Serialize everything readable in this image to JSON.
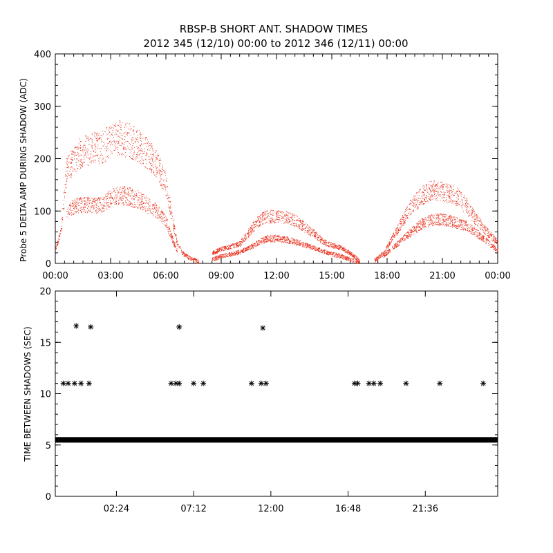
{
  "title_line1": "RBSP-B SHORT ANT. SHADOW TIMES",
  "title_line2": "2012 345 (12/10) 00:00 to 2012 346 (12/11) 00:00",
  "colors": {
    "top_points": "#e8301c",
    "bottom_points": "#000000"
  },
  "chart_data": [
    {
      "type": "scatter",
      "ylabel": "Probe 5 DELTA AMP DURING SHADOW (ADC)",
      "xlim": [
        0,
        24
      ],
      "ylim": [
        0,
        400
      ],
      "yticks": [
        "0",
        "100",
        "200",
        "300",
        "400"
      ],
      "xticks": [
        "00:00",
        "03:00",
        "06:00",
        "09:00",
        "12:00",
        "15:00",
        "18:00",
        "21:00",
        "00:00"
      ],
      "series": [
        {
          "x": [
            0,
            0.3,
            0.6,
            1,
            1.5,
            2,
            2.5,
            3,
            3.5,
            4,
            4.5,
            5,
            5.5,
            6,
            6.3,
            6.6,
            6.9,
            7.2,
            7.5,
            7.8
          ],
          "y": [
            30,
            60,
            180,
            200,
            215,
            220,
            222,
            235,
            240,
            235,
            225,
            210,
            190,
            150,
            90,
            40,
            20,
            12,
            8,
            2
          ]
        },
        {
          "x": [
            0.6,
            1,
            1.5,
            2,
            2.5,
            3,
            3.5,
            4,
            4.5,
            5,
            5.5,
            6,
            6.3,
            6.6
          ],
          "y": [
            95,
            110,
            112,
            110,
            112,
            125,
            130,
            128,
            122,
            112,
            100,
            80,
            50,
            25
          ]
        },
        {
          "x": [
            8.5,
            9,
            9.5,
            10,
            10.5,
            11,
            11.5,
            12,
            12.5,
            13,
            13.5,
            14,
            14.5,
            15,
            15.5,
            16,
            16.5
          ],
          "y": [
            20,
            28,
            32,
            38,
            60,
            82,
            90,
            90,
            88,
            82,
            70,
            58,
            42,
            35,
            30,
            20,
            5
          ]
        },
        {
          "x": [
            8.5,
            9,
            9.5,
            10,
            10.5,
            11,
            11.5,
            12,
            12.5,
            13,
            13.5,
            14,
            14.5,
            15,
            15.5,
            16,
            16.5
          ],
          "y": [
            8,
            14,
            18,
            22,
            30,
            40,
            48,
            48,
            46,
            42,
            36,
            30,
            24,
            18,
            14,
            8,
            2
          ]
        },
        {
          "x": [
            17.3,
            17.8,
            18.3,
            18.8,
            19.3,
            19.8,
            20.3,
            20.8,
            21.3,
            21.8,
            22.3,
            22.8,
            23.3,
            24
          ],
          "y": [
            5,
            20,
            50,
            80,
            110,
            128,
            138,
            140,
            135,
            128,
            110,
            85,
            65,
            40
          ]
        },
        {
          "x": [
            17.8,
            18.3,
            18.8,
            19.3,
            19.8,
            20.3,
            20.8,
            21.3,
            21.8,
            22.3,
            22.8,
            23.3,
            24
          ],
          "y": [
            15,
            30,
            45,
            60,
            75,
            82,
            85,
            82,
            78,
            72,
            60,
            45,
            25
          ]
        }
      ]
    },
    {
      "type": "scatter",
      "ylabel": "TIME BETWEEN SHADOWS (SEC)",
      "xlim": [
        0,
        27.5
      ],
      "ylim": [
        0,
        20
      ],
      "yticks": [
        "0",
        "5",
        "10",
        "15",
        "20"
      ],
      "xticks": [
        "02:24",
        "07:12",
        "12:00",
        "16:48",
        "21:36"
      ],
      "series": [
        {
          "x": [
            0.5,
            0.8,
            1.2,
            1.6,
            2.1,
            7.2,
            7.5,
            7.7,
            8.6,
            9.2,
            12.2,
            12.8,
            13.1,
            18.6,
            18.8,
            19.5,
            19.8,
            20.2,
            21.8,
            23.9,
            26.6
          ],
          "y": [
            11,
            11,
            11,
            11,
            11,
            11,
            11,
            11,
            11,
            11,
            11,
            11,
            11,
            11,
            11,
            11,
            11,
            11,
            11,
            11,
            11
          ]
        },
        {
          "x": [
            1.3,
            2.2,
            7.7,
            12.9
          ],
          "y": [
            16.6,
            16.5,
            16.5,
            16.4
          ]
        },
        {
          "x": [
            0,
            27.5
          ],
          "y": [
            5.5,
            5.5
          ]
        }
      ]
    }
  ]
}
